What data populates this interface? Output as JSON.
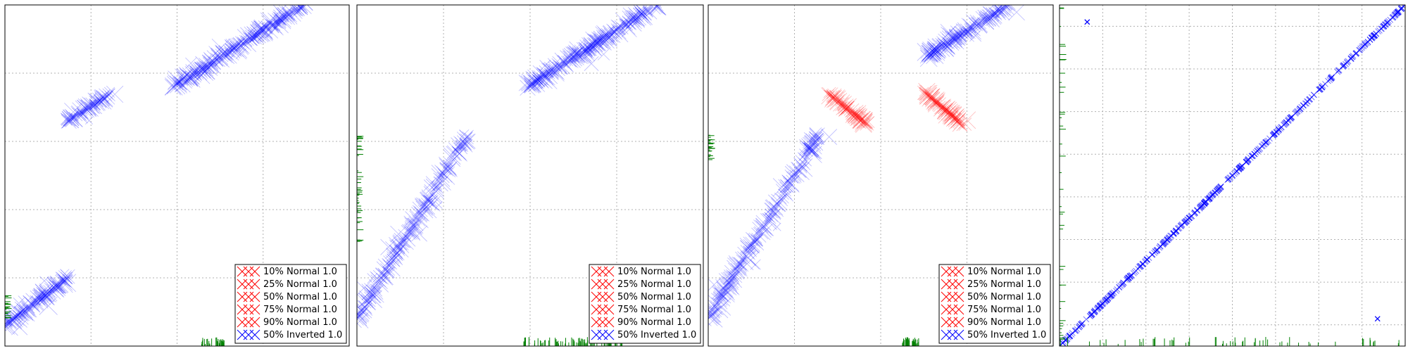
{
  "colors": {
    "normal": "#ff0000",
    "inverted": "#0000ff",
    "rug": "#008000",
    "grid": "#b0b0b0",
    "axes": "#000000"
  },
  "chart_data": [
    {
      "type": "scatter",
      "marker": "x",
      "xlim": [
        0,
        1
      ],
      "ylim": [
        0,
        1
      ],
      "grid": true,
      "legend_placement": "lower-right",
      "legend": [
        "10% Normal 1.0",
        "25% Normal 1.0",
        "50% Normal 1.0",
        "75% Normal 1.0",
        "90% Normal 1.0",
        "50% Inverted 1.0"
      ],
      "series": [
        {
          "legend_index": 5,
          "segments": [
            {
              "x": [
                0.0,
                0.18
              ],
              "y": [
                0.06,
                0.2
              ],
              "spread": 0.015,
              "n": 140
            },
            {
              "x": [
                0.18,
                0.31
              ],
              "y": [
                0.66,
                0.74
              ],
              "spread": 0.01,
              "n": 80
            },
            {
              "x": [
                0.49,
                0.87
              ],
              "y": [
                0.76,
                1.0
              ],
              "spread": 0.016,
              "n": 260
            }
          ]
        }
      ],
      "rug_x": {
        "range": [
          0.57,
          0.64
        ],
        "n": 35
      },
      "rug_y": {
        "range": [
          0.08,
          0.15
        ],
        "n": 22
      }
    },
    {
      "type": "scatter",
      "marker": "x",
      "xlim": [
        0,
        1
      ],
      "ylim": [
        0,
        1
      ],
      "grid": true,
      "legend_placement": "lower-right",
      "legend": [
        "10% Normal 1.0",
        "25% Normal 1.0",
        "50% Normal 1.0",
        "75% Normal 1.0",
        "90% Normal 1.0",
        "50% Inverted 1.0"
      ],
      "series": [
        {
          "legend_index": 5,
          "segments": [
            {
              "x": [
                0.0,
                0.32
              ],
              "y": [
                0.08,
                0.62
              ],
              "spread": 0.016,
              "n": 220
            },
            {
              "x": [
                0.49,
                0.87
              ],
              "y": [
                0.76,
                1.0
              ],
              "spread": 0.016,
              "n": 260
            }
          ]
        }
      ],
      "rug_x": {
        "range": [
          0.48,
          0.77
        ],
        "n": 80
      },
      "rug_y": {
        "range": [
          0.3,
          0.62
        ],
        "n": 45
      }
    },
    {
      "type": "scatter",
      "marker": "x",
      "xlim": [
        0,
        1
      ],
      "ylim": [
        0,
        1
      ],
      "grid": true,
      "legend_placement": "lower-right",
      "legend": [
        "10% Normal 1.0",
        "25% Normal 1.0",
        "50% Normal 1.0",
        "75% Normal 1.0",
        "90% Normal 1.0",
        "50% Inverted 1.0"
      ],
      "series": [
        {
          "legend_index": 2,
          "color_key": "normal",
          "segments": [
            {
              "x": [
                0.35,
                0.46
              ],
              "y": [
                0.74,
                0.65
              ],
              "spread": 0.012,
              "n": 90
            },
            {
              "x": [
                0.63,
                0.74
              ],
              "y": [
                0.74,
                0.65
              ],
              "spread": 0.012,
              "n": 90
            }
          ]
        },
        {
          "legend_index": 5,
          "color_key": "inverted",
          "segments": [
            {
              "x": [
                0.0,
                0.32
              ],
              "y": [
                0.08,
                0.62
              ],
              "spread": 0.016,
              "n": 220
            },
            {
              "x": [
                0.63,
                0.87
              ],
              "y": [
                0.85,
                1.0
              ],
              "spread": 0.016,
              "n": 170
            }
          ]
        }
      ],
      "rug_x": {
        "range": [
          0.56,
          0.61
        ],
        "n": 30
      },
      "rug_y": {
        "range": [
          0.54,
          0.62
        ],
        "n": 25
      }
    },
    {
      "type": "scatter",
      "marker": "x",
      "xlim": [
        0,
        1
      ],
      "ylim": [
        0,
        1
      ],
      "grid": true,
      "series": [
        {
          "color_key": "inverted",
          "segments": [
            {
              "x": [
                0.0,
                1.0
              ],
              "y": [
                0.0,
                1.0
              ],
              "spread": 0.002,
              "n": 500
            }
          ]
        },
        {
          "color_key": "inverted",
          "points": [
            [
              0.08,
              0.95
            ],
            [
              0.92,
              0.08
            ]
          ]
        }
      ],
      "rug_x": {
        "range": [
          0.0,
          1.0
        ],
        "n": 60
      },
      "rug_y": {
        "range": [
          0.0,
          1.0
        ],
        "n": 40
      }
    }
  ]
}
